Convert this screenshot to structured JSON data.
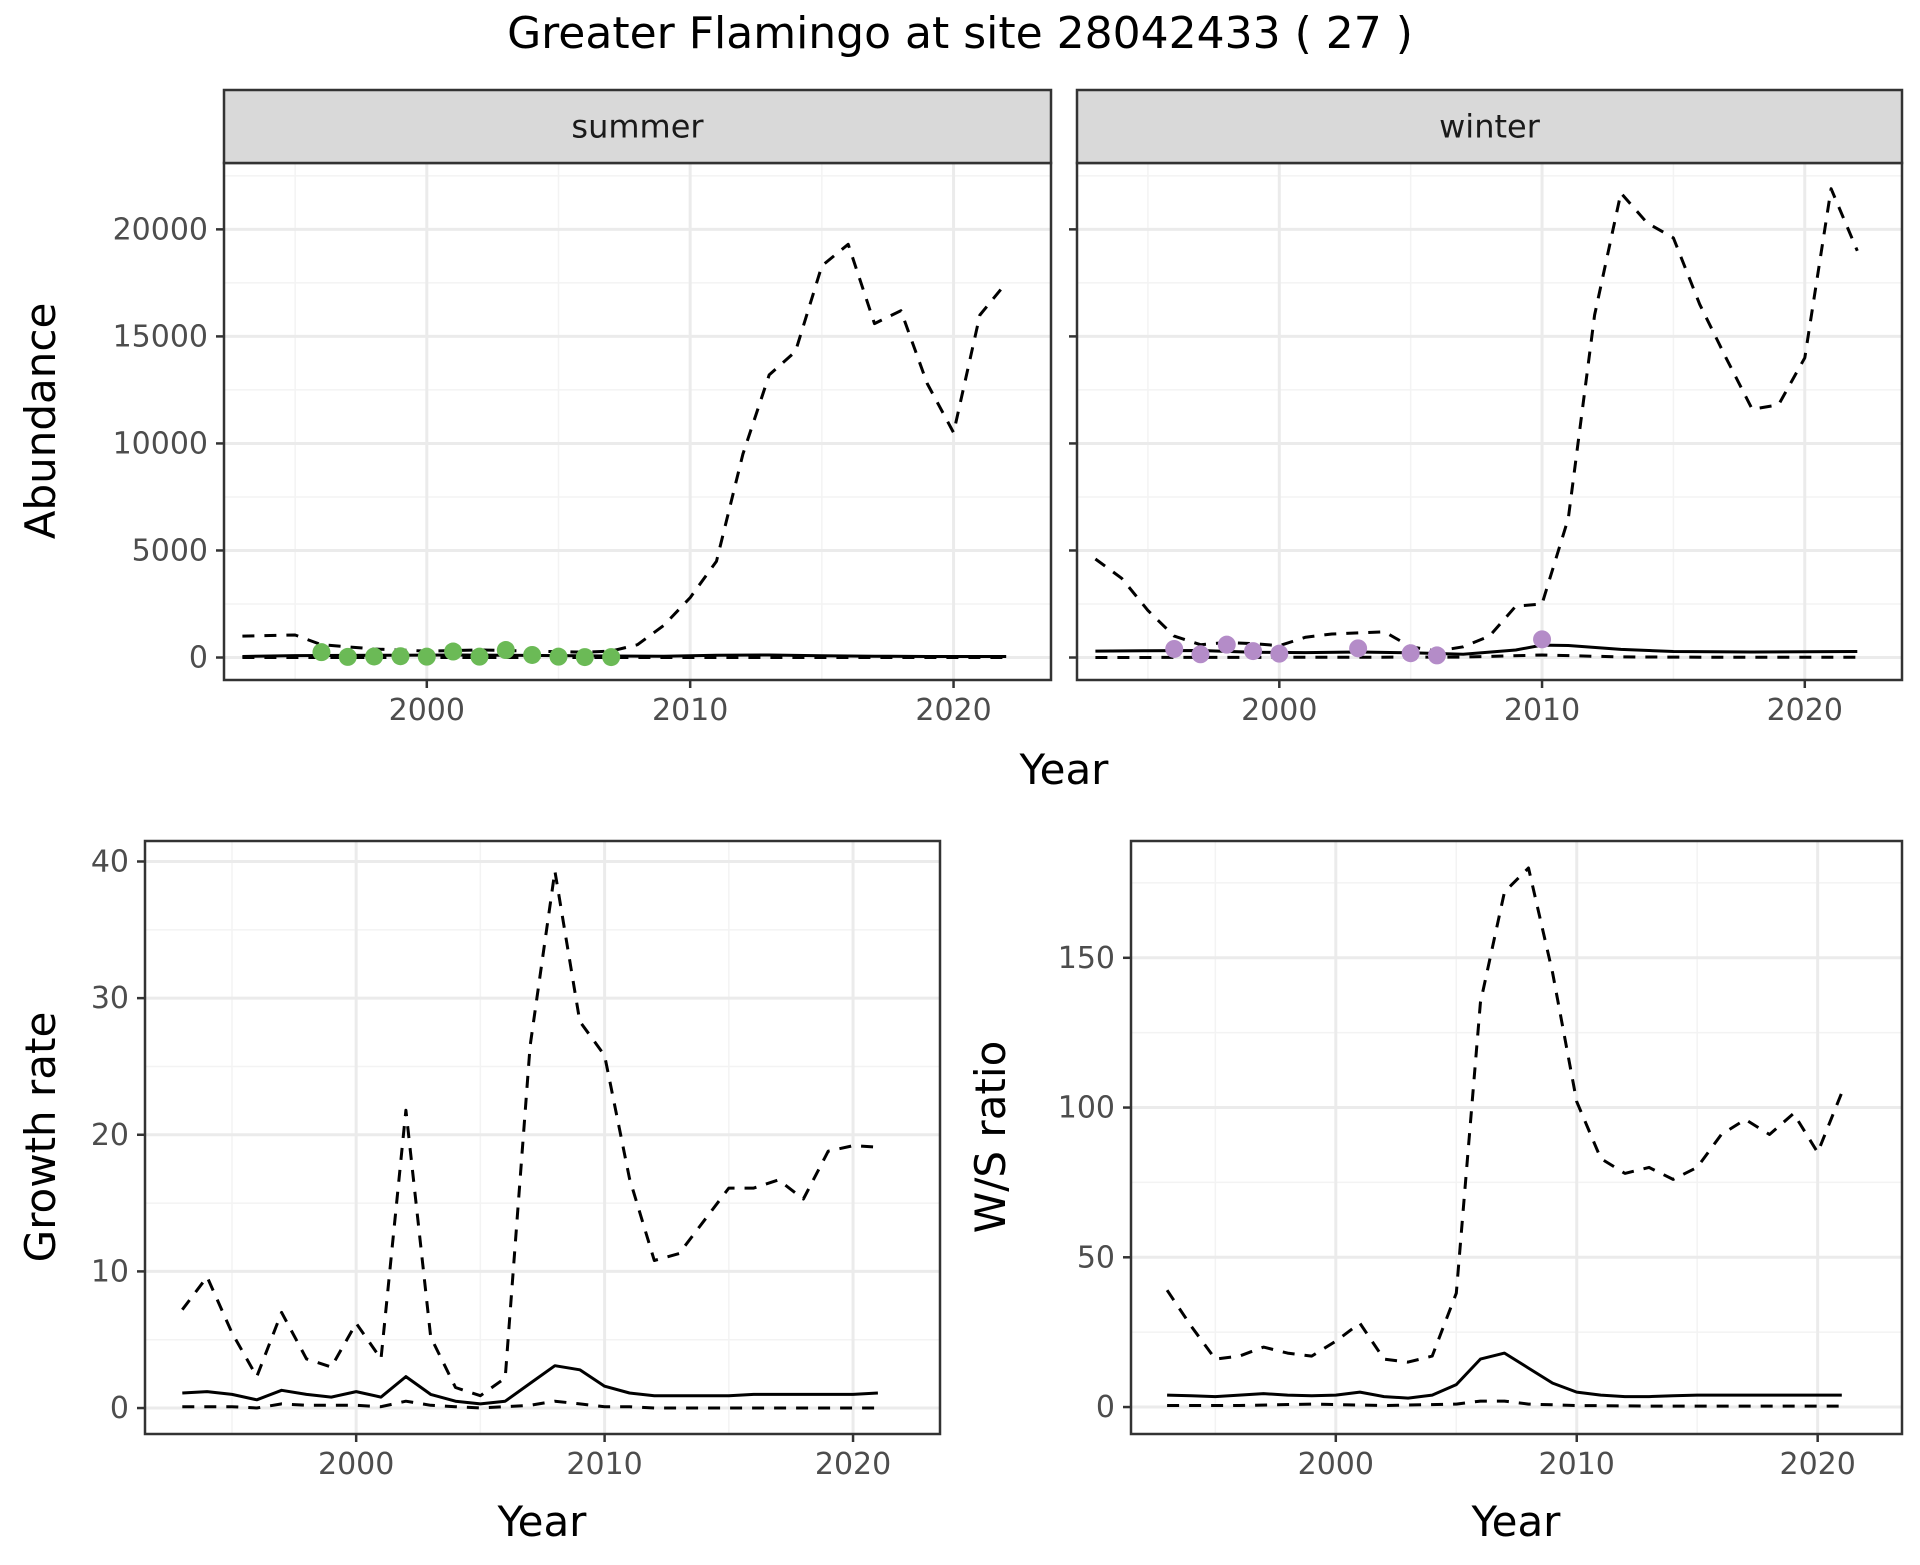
{
  "title": "Greater Flamingo at site 28042433 ( 27 )",
  "colors": {
    "summer_points": "#6bba56",
    "winter_points": "#b48cc8",
    "line": "#000000",
    "strip_bg": "#d9d9d9",
    "panel_border": "#333333",
    "grid_major": "#ebebeb",
    "grid_minor": "#f3f3f3"
  },
  "chart_data": [
    {
      "id": "summer",
      "type": "line",
      "strip": "summer",
      "xlabel": "Year",
      "ylabel": "Abundance",
      "xlim": [
        1992.3,
        2023.7
      ],
      "ylim": [
        -1050,
        23100
      ],
      "x_ticks": [
        2000,
        2010,
        2020
      ],
      "y_ticks": [
        0,
        5000,
        10000,
        15000,
        20000
      ],
      "grid": true,
      "series": [
        {
          "style": "solid",
          "x": [
            1993,
            1995,
            1997,
            1999,
            2001,
            2003,
            2005,
            2007,
            2009,
            2011,
            2013,
            2015,
            2017,
            2019,
            2022
          ],
          "values": [
            50,
            90,
            100,
            110,
            120,
            110,
            90,
            70,
            60,
            110,
            120,
            80,
            60,
            50,
            50
          ]
        },
        {
          "style": "dashed",
          "x": [
            1993,
            1995,
            1996,
            1998,
            2000,
            2002,
            2004,
            2006,
            2007,
            2008,
            2009,
            2010,
            2011,
            2012,
            2013,
            2014,
            2015,
            2016,
            2017,
            2018,
            2019,
            2020,
            2021,
            2022
          ],
          "values": [
            1000,
            1050,
            600,
            400,
            300,
            350,
            300,
            250,
            300,
            600,
            1500,
            2800,
            4500,
            9500,
            13200,
            14300,
            18300,
            19300,
            15600,
            16200,
            12800,
            10500,
            16000,
            17500
          ]
        },
        {
          "style": "dashed",
          "x": [
            1993,
            2000,
            2005,
            2010,
            2015,
            2022
          ],
          "values": [
            0,
            0,
            0,
            0,
            0,
            0
          ]
        }
      ],
      "points": {
        "x": [
          1996,
          1997,
          1998,
          1999,
          2000,
          2001,
          2002,
          2003,
          2004,
          2005,
          2006,
          2007
        ],
        "values": [
          250,
          30,
          50,
          60,
          40,
          280,
          40,
          350,
          120,
          40,
          20,
          20
        ]
      }
    },
    {
      "id": "winter",
      "type": "line",
      "strip": "winter",
      "xlabel": "Year",
      "ylabel": "",
      "xlim": [
        1992.3,
        2023.7
      ],
      "ylim": [
        -1050,
        23100
      ],
      "x_ticks": [
        2000,
        2010,
        2020
      ],
      "y_ticks": [
        0,
        5000,
        10000,
        15000,
        20000
      ],
      "grid": true,
      "series": [
        {
          "style": "solid",
          "x": [
            1993,
            1995,
            1997,
            1999,
            2001,
            2003,
            2005,
            2007,
            2009,
            2010,
            2011,
            2013,
            2015,
            2018,
            2022
          ],
          "values": [
            300,
            320,
            330,
            250,
            230,
            260,
            220,
            150,
            350,
            580,
            560,
            380,
            280,
            260,
            280
          ]
        },
        {
          "style": "dashed",
          "x": [
            1993,
            1994,
            1995,
            1996,
            1997,
            1998,
            1999,
            2000,
            2001,
            2002,
            2003,
            2004,
            2005,
            2006,
            2007,
            2008,
            2009,
            2010,
            2011,
            2012,
            2013,
            2014,
            2015,
            2016,
            2017,
            2018,
            2019,
            2020,
            2021,
            2022
          ],
          "values": [
            4600,
            3700,
            2200,
            1000,
            600,
            700,
            650,
            550,
            950,
            1100,
            1150,
            1200,
            500,
            300,
            500,
            1000,
            2400,
            2500,
            6500,
            16000,
            21700,
            20300,
            19600,
            16500,
            14000,
            11600,
            11800,
            14000,
            21900,
            19000
          ]
        },
        {
          "style": "dashed",
          "x": [
            1993,
            2000,
            2007,
            2010,
            2013,
            2017,
            2022
          ],
          "values": [
            0,
            10,
            20,
            120,
            30,
            10,
            10
          ]
        }
      ],
      "points": {
        "x": [
          1996,
          1997,
          1998,
          1999,
          2000,
          2003,
          2005,
          2006,
          2010
        ],
        "values": [
          400,
          150,
          600,
          300,
          180,
          430,
          200,
          100,
          850
        ]
      }
    },
    {
      "id": "growth",
      "type": "line",
      "xlabel": "Year",
      "ylabel": "Growth rate",
      "xlim": [
        1991.5,
        2023.5
      ],
      "ylim": [
        -1.9,
        41.5
      ],
      "x_ticks": [
        2000,
        2010,
        2020
      ],
      "y_ticks": [
        0,
        10,
        20,
        30,
        40
      ],
      "grid": true,
      "series": [
        {
          "style": "solid",
          "x": [
            1993,
            1994,
            1995,
            1996,
            1997,
            1998,
            1999,
            2000,
            2001,
            2002,
            2003,
            2004,
            2005,
            2006,
            2007,
            2008,
            2009,
            2010,
            2011,
            2012,
            2013,
            2014,
            2015,
            2016,
            2017,
            2018,
            2019,
            2020,
            2021
          ],
          "values": [
            1.1,
            1.2,
            1.0,
            0.6,
            1.3,
            1.0,
            0.8,
            1.2,
            0.8,
            2.3,
            1.0,
            0.5,
            0.3,
            0.5,
            1.8,
            3.1,
            2.8,
            1.6,
            1.1,
            0.9,
            0.9,
            0.9,
            0.9,
            1.0,
            1.0,
            1.0,
            1.0,
            1.0,
            1.1
          ]
        },
        {
          "style": "dashed",
          "x": [
            1993,
            1994,
            1995,
            1996,
            1997,
            1998,
            1999,
            2000,
            2001,
            2002,
            2003,
            2004,
            2005,
            2006,
            2007,
            2008,
            2009,
            2010,
            2011,
            2012,
            2013,
            2014,
            2015,
            2016,
            2017,
            2018,
            2019,
            2020,
            2021
          ],
          "values": [
            7.2,
            9.6,
            5.5,
            2.3,
            7.0,
            3.6,
            3.0,
            6.2,
            3.6,
            21.8,
            5.2,
            1.5,
            0.9,
            2.2,
            26.5,
            39.3,
            28.3,
            25.8,
            16.8,
            10.8,
            11.3,
            13.7,
            16.1,
            16.1,
            16.7,
            15.3,
            18.8,
            19.2,
            19.1
          ]
        },
        {
          "style": "dashed",
          "x": [
            1993,
            1994,
            1995,
            1996,
            1997,
            1998,
            1999,
            2000,
            2001,
            2002,
            2003,
            2004,
            2005,
            2006,
            2007,
            2008,
            2009,
            2010,
            2011,
            2012,
            2013,
            2014,
            2015,
            2016,
            2017,
            2018,
            2019,
            2020,
            2021
          ],
          "values": [
            0.1,
            0.1,
            0.1,
            0.0,
            0.3,
            0.2,
            0.2,
            0.2,
            0.1,
            0.5,
            0.2,
            0.1,
            0.0,
            0.1,
            0.2,
            0.5,
            0.3,
            0.1,
            0.1,
            0.0,
            0.0,
            0.0,
            0.0,
            0.0,
            0.0,
            0.0,
            0.0,
            0.0,
            0.0
          ]
        }
      ]
    },
    {
      "id": "ws",
      "type": "line",
      "xlabel": "Year",
      "ylabel": "W/S ratio",
      "xlim": [
        1991.5,
        2023.5
      ],
      "ylim": [
        -9,
        189
      ],
      "x_ticks": [
        2000,
        2010,
        2020
      ],
      "y_ticks": [
        0,
        50,
        100,
        150
      ],
      "grid": true,
      "series": [
        {
          "style": "solid",
          "x": [
            1993,
            1994,
            1995,
            1996,
            1997,
            1998,
            1999,
            2000,
            2001,
            2002,
            2003,
            2004,
            2005,
            2006,
            2007,
            2008,
            2009,
            2010,
            2011,
            2012,
            2013,
            2014,
            2015,
            2016,
            2017,
            2018,
            2019,
            2020,
            2021
          ],
          "values": [
            4.0,
            3.8,
            3.5,
            4.0,
            4.5,
            4.0,
            3.8,
            4.0,
            5.0,
            3.5,
            3.0,
            4.0,
            7.5,
            16.0,
            18.0,
            13.0,
            8.0,
            5.0,
            4.0,
            3.5,
            3.5,
            3.8,
            4.0,
            4.0,
            4.0,
            4.0,
            4.0,
            4.0,
            4.0
          ]
        },
        {
          "style": "dashed",
          "x": [
            1993,
            1994,
            1995,
            1996,
            1997,
            1998,
            1999,
            2000,
            2001,
            2002,
            2003,
            2004,
            2005,
            2006,
            2007,
            2008,
            2009,
            2010,
            2011,
            2012,
            2013,
            2014,
            2015,
            2016,
            2017,
            2018,
            2019,
            2020,
            2021
          ],
          "values": [
            39,
            27,
            16,
            17,
            20,
            18,
            17,
            22,
            28,
            16,
            15,
            17,
            38,
            135,
            172,
            180,
            145,
            102,
            83,
            78,
            80,
            76,
            80,
            91,
            96,
            91,
            98,
            85,
            105
          ]
        },
        {
          "style": "dashed",
          "x": [
            1993,
            1996,
            1999,
            2002,
            2005,
            2006,
            2007,
            2008,
            2010,
            2013,
            2017,
            2021
          ],
          "values": [
            0.5,
            0.5,
            1.0,
            0.5,
            1.0,
            2.0,
            2.0,
            1.0,
            0.5,
            0.3,
            0.3,
            0.3
          ]
        }
      ]
    }
  ]
}
